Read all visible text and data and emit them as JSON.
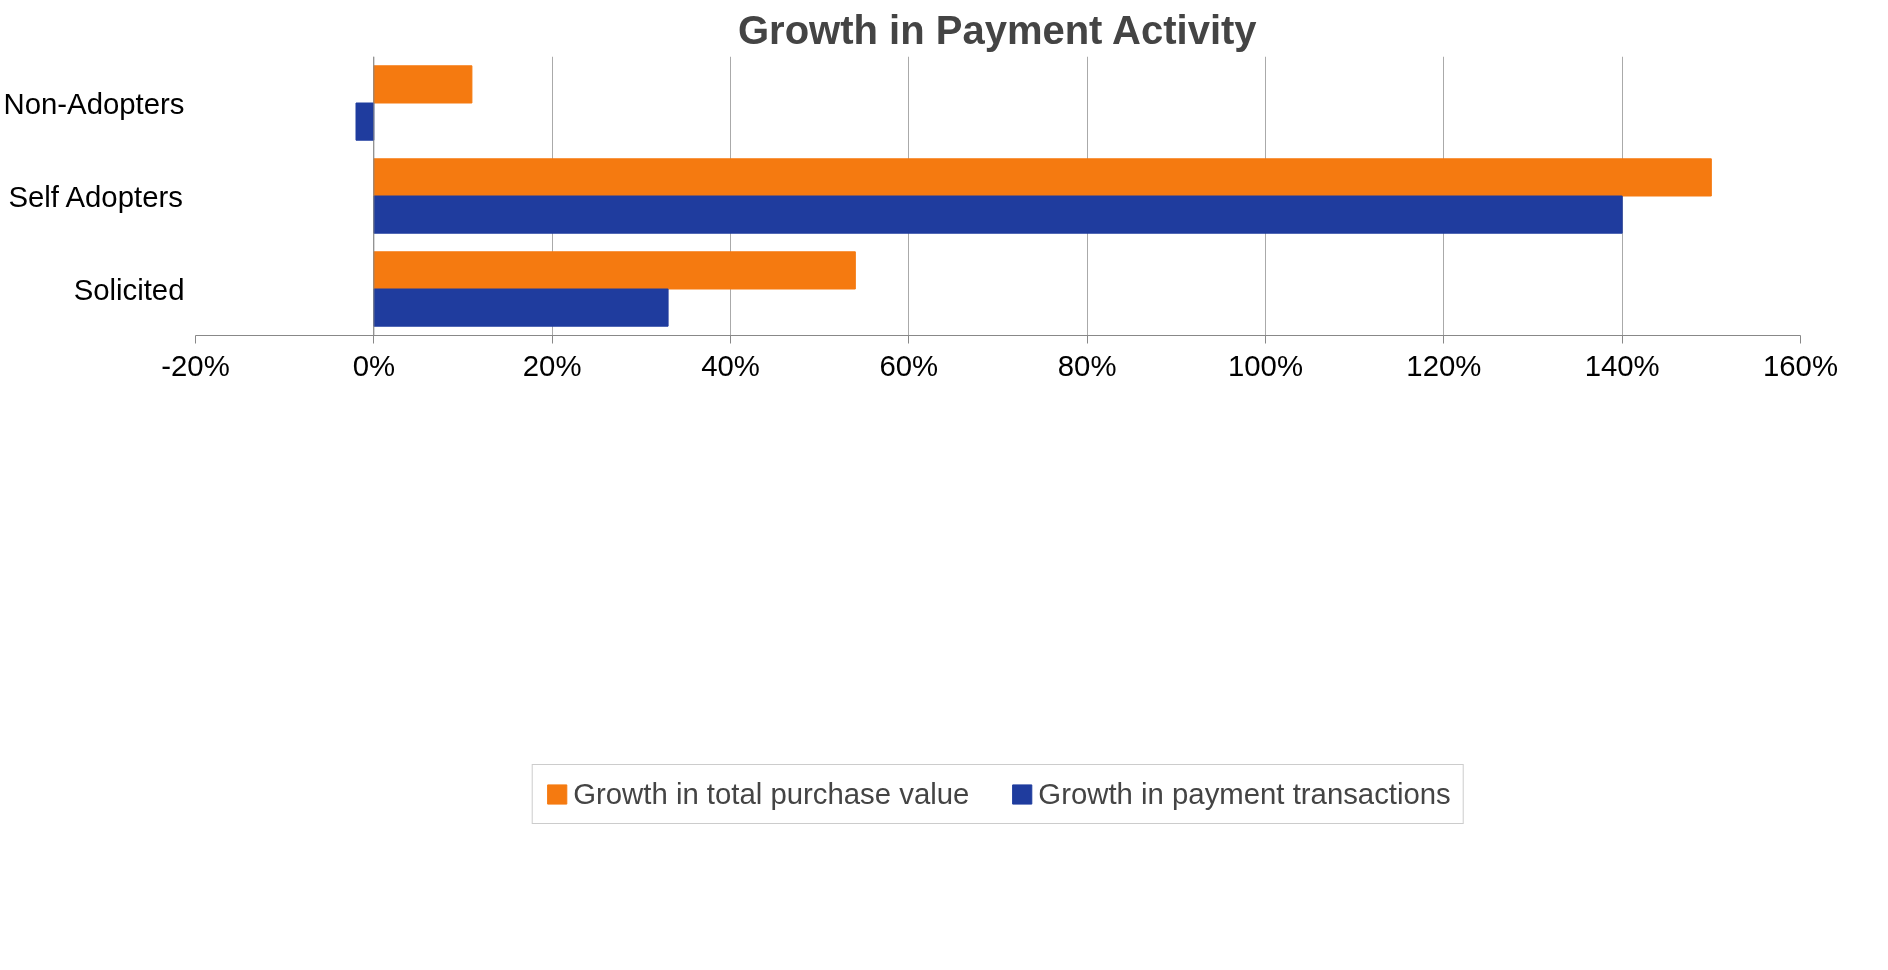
{
  "chart_data": {
    "type": "bar",
    "orientation": "horizontal",
    "title": "Growth in Payment Activity",
    "categories": [
      "Non-Adopters",
      "Self Adopters",
      "Solicited"
    ],
    "series": [
      {
        "name": "Growth in total purchase value",
        "color": "#f57a10",
        "values": [
          11,
          150,
          54
        ]
      },
      {
        "name": "Growth in payment transactions",
        "color": "#1f3c9e",
        "values": [
          -2,
          140,
          33
        ]
      }
    ],
    "xlim": [
      -20,
      160
    ],
    "xticks": [
      {
        "value": -20,
        "label": "-20%"
      },
      {
        "value": 0,
        "label": "0%"
      },
      {
        "value": 20,
        "label": "20%"
      },
      {
        "value": 40,
        "label": "40%"
      },
      {
        "value": 60,
        "label": "60%"
      },
      {
        "value": 80,
        "label": "80%"
      },
      {
        "value": 100,
        "label": "100%"
      },
      {
        "value": 120,
        "label": "120%"
      },
      {
        "value": 140,
        "label": "140%"
      },
      {
        "value": 160,
        "label": "160%"
      }
    ],
    "grid": "x",
    "legend": "bottom"
  }
}
